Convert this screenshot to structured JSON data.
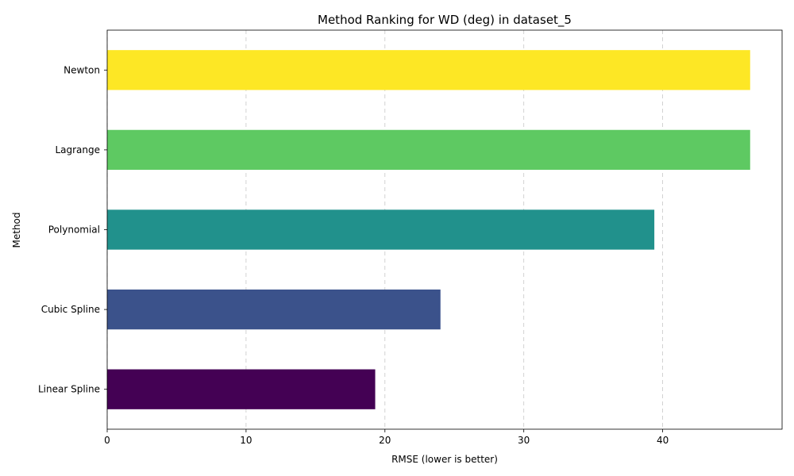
{
  "chart_data": {
    "type": "bar",
    "orientation": "horizontal",
    "title": "Method Ranking for WD (deg) in dataset_5",
    "xlabel": "RMSE (lower is better)",
    "ylabel": "Method",
    "xlim": [
      0,
      48.6
    ],
    "xticks": [
      0,
      10,
      20,
      30,
      40
    ],
    "categories": [
      "Linear Spline",
      "Cubic Spline",
      "Polynomial",
      "Lagrange",
      "Newton"
    ],
    "values": [
      19.3,
      24.0,
      39.4,
      46.3,
      46.3
    ],
    "colors": [
      "#440154",
      "#3b528b",
      "#21918c",
      "#5ec962",
      "#fde725"
    ],
    "grid": "x-axis dashed",
    "legend": "none"
  }
}
